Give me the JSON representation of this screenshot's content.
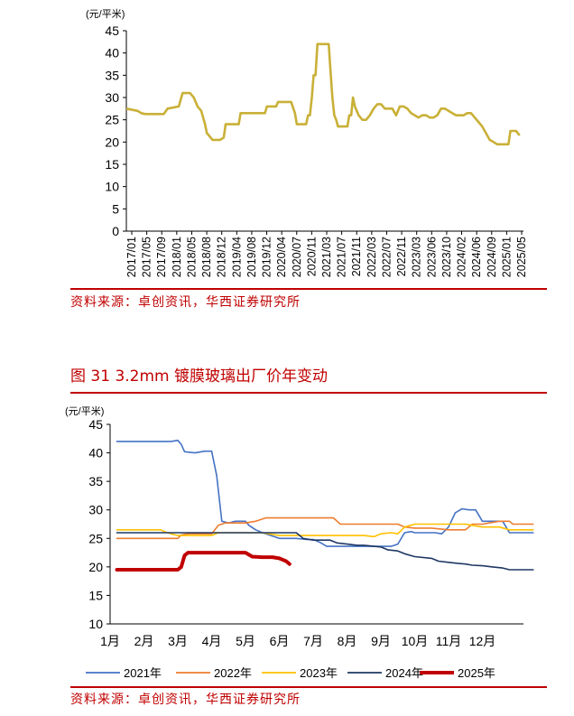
{
  "chart_data": [
    {
      "type": "line",
      "unit": "(元/平米)",
      "ylim": [
        0,
        45
      ],
      "yticks": [
        0,
        5,
        10,
        15,
        20,
        25,
        30,
        35,
        40,
        45
      ],
      "xticks": [
        "2017/01",
        "2017/05",
        "2017/09",
        "2018/01",
        "2018/05",
        "2018/08",
        "2018/12",
        "2019/04",
        "2019/08",
        "2019/12",
        "2020/04",
        "2020/07",
        "2020/11",
        "2021/03",
        "2021/07",
        "2021/11",
        "2022/03",
        "2022/07",
        "2022/11",
        "2023/03",
        "2023/06",
        "2023/10",
        "2024/02",
        "2024/06",
        "2024/09",
        "2025/01",
        "2025/05"
      ],
      "series": [
        {
          "color": "#c9b037",
          "points": [
            [
              0,
              27.5
            ],
            [
              3,
              27
            ],
            [
              4,
              26.5
            ],
            [
              5,
              26.3
            ],
            [
              10,
              26.3
            ],
            [
              11,
              27.5
            ],
            [
              14,
              28
            ],
            [
              15,
              31
            ],
            [
              17,
              31
            ],
            [
              18,
              30
            ],
            [
              19,
              28
            ],
            [
              20,
              27
            ],
            [
              21,
              24
            ],
            [
              21.5,
              22
            ],
            [
              22,
              21.5
            ],
            [
              23,
              20.5
            ],
            [
              25,
              20.5
            ],
            [
              26,
              21
            ],
            [
              26.5,
              24
            ],
            [
              30,
              24
            ],
            [
              30.5,
              26.5
            ],
            [
              37,
              26.5
            ],
            [
              37.5,
              28
            ],
            [
              40,
              28
            ],
            [
              40.5,
              29
            ],
            [
              44,
              29
            ],
            [
              45,
              26.5
            ],
            [
              45.5,
              24
            ],
            [
              48,
              24
            ],
            [
              48.5,
              26
            ],
            [
              49,
              26
            ],
            [
              49.5,
              30
            ],
            [
              50,
              35
            ],
            [
              50.5,
              35
            ],
            [
              51,
              42
            ],
            [
              54,
              42
            ],
            [
              54.5,
              36
            ],
            [
              55,
              30
            ],
            [
              55.5,
              26
            ],
            [
              56,
              25
            ],
            [
              56.5,
              23.5
            ],
            [
              59,
              23.5
            ],
            [
              59.5,
              26
            ],
            [
              60,
              26
            ],
            [
              60.5,
              30
            ],
            [
              61,
              28
            ],
            [
              62,
              26
            ],
            [
              63,
              25
            ],
            [
              64,
              25
            ],
            [
              65,
              26
            ],
            [
              66,
              27.5
            ],
            [
              67,
              28.5
            ],
            [
              68,
              28.5
            ],
            [
              69,
              27.5
            ],
            [
              71,
              27.5
            ],
            [
              72,
              26
            ],
            [
              73,
              28
            ],
            [
              74,
              28
            ],
            [
              75,
              27.5
            ],
            [
              76,
              26.5
            ],
            [
              77,
              26
            ],
            [
              78,
              25.5
            ],
            [
              79,
              26
            ],
            [
              80,
              26
            ],
            [
              81,
              25.5
            ],
            [
              82,
              25.5
            ],
            [
              83,
              26
            ],
            [
              84,
              27.5
            ],
            [
              85,
              27.5
            ],
            [
              86,
              27
            ],
            [
              87,
              26.5
            ],
            [
              88,
              26
            ],
            [
              90,
              26
            ],
            [
              91,
              26.5
            ],
            [
              92,
              26.5
            ],
            [
              93,
              25.5
            ],
            [
              94,
              24.5
            ],
            [
              95,
              23.5
            ],
            [
              96,
              22
            ],
            [
              97,
              20.5
            ],
            [
              98,
              20
            ],
            [
              99,
              19.5
            ],
            [
              102,
              19.5
            ],
            [
              102.5,
              22.5
            ],
            [
              104,
              22.5
            ],
            [
              105,
              21.5
            ]
          ]
        }
      ]
    },
    {
      "type": "line",
      "unit": "(元/平米)",
      "ylim": [
        10,
        45
      ],
      "yticks": [
        10,
        15,
        20,
        25,
        30,
        35,
        40,
        45
      ],
      "xticks": [
        "1月",
        "2月",
        "3月",
        "4月",
        "5月",
        "6月",
        "7月",
        "8月",
        "9月",
        "10月",
        "11月",
        "12月"
      ],
      "series": [
        {
          "name": "2021年",
          "color": "#4472c4",
          "width": 1.6,
          "points": [
            [
              0.2,
              42
            ],
            [
              1.8,
              42
            ],
            [
              2,
              42.2
            ],
            [
              2.1,
              41.5
            ],
            [
              2.2,
              40.2
            ],
            [
              2.5,
              40
            ],
            [
              2.8,
              40.3
            ],
            [
              3.0,
              40.3
            ],
            [
              3.15,
              36
            ],
            [
              3.3,
              28
            ],
            [
              3.5,
              27.7
            ],
            [
              3.7,
              28
            ],
            [
              4.0,
              28
            ],
            [
              4.1,
              27.3
            ],
            [
              4.3,
              26.5
            ],
            [
              4.5,
              26
            ],
            [
              5.0,
              25
            ],
            [
              5.5,
              25
            ],
            [
              5.8,
              24.8
            ],
            [
              6.0,
              24.8
            ],
            [
              6.2,
              24.3
            ],
            [
              6.4,
              23.6
            ],
            [
              6.6,
              23.6
            ],
            [
              8.0,
              23.6
            ],
            [
              8.3,
              23.6
            ],
            [
              8.5,
              24
            ],
            [
              8.7,
              26
            ],
            [
              8.9,
              26.2
            ],
            [
              9.0,
              26
            ],
            [
              9.6,
              26
            ],
            [
              9.8,
              25.8
            ],
            [
              10.0,
              27
            ],
            [
              10.2,
              29.5
            ],
            [
              10.4,
              30.2
            ],
            [
              10.6,
              30
            ],
            [
              10.8,
              30
            ],
            [
              11.0,
              28
            ],
            [
              11.2,
              28
            ],
            [
              11.6,
              28
            ],
            [
              11.8,
              26
            ],
            [
              12.1,
              26
            ],
            [
              12.5,
              26
            ]
          ]
        },
        {
          "name": "2022年",
          "color": "#ed7d31",
          "width": 1.6,
          "points": [
            [
              0.2,
              25
            ],
            [
              2.0,
              25
            ],
            [
              2.1,
              25.6
            ],
            [
              2.3,
              25.8
            ],
            [
              3.0,
              25.8
            ],
            [
              3.2,
              27.3
            ],
            [
              3.4,
              27.7
            ],
            [
              4.0,
              27.7
            ],
            [
              4.3,
              28
            ],
            [
              4.6,
              28.6
            ],
            [
              5.0,
              28.6
            ],
            [
              6.6,
              28.6
            ],
            [
              6.8,
              27.5
            ],
            [
              7.5,
              27.5
            ],
            [
              8.0,
              27.5
            ],
            [
              8.5,
              27.5
            ],
            [
              8.7,
              27
            ],
            [
              9.0,
              26.8
            ],
            [
              9.5,
              26.8
            ],
            [
              10.0,
              26.5
            ],
            [
              10.5,
              26.5
            ],
            [
              10.7,
              27.5
            ],
            [
              11.0,
              27.5
            ],
            [
              11.5,
              28
            ],
            [
              11.8,
              28
            ],
            [
              11.9,
              27.5
            ],
            [
              12.5,
              27.5
            ]
          ]
        },
        {
          "name": "2023年",
          "color": "#ffc000",
          "width": 1.6,
          "points": [
            [
              0.2,
              26.5
            ],
            [
              1.5,
              26.5
            ],
            [
              1.6,
              26.2
            ],
            [
              1.8,
              25.8
            ],
            [
              2.0,
              25.5
            ],
            [
              3.0,
              25.5
            ],
            [
              3.2,
              26
            ],
            [
              3.5,
              26
            ],
            [
              4.5,
              26
            ],
            [
              5.0,
              25.5
            ],
            [
              6.0,
              25.5
            ],
            [
              7.0,
              25.5
            ],
            [
              7.5,
              25.5
            ],
            [
              7.8,
              25.3
            ],
            [
              8.0,
              25.8
            ],
            [
              8.3,
              26
            ],
            [
              8.5,
              25.8
            ],
            [
              8.7,
              27
            ],
            [
              9.0,
              27.5
            ],
            [
              9.5,
              27.5
            ],
            [
              10.5,
              27.5
            ],
            [
              10.7,
              27.3
            ],
            [
              11.0,
              27
            ],
            [
              11.5,
              27
            ],
            [
              11.8,
              26.5
            ],
            [
              12.5,
              26.5
            ]
          ]
        },
        {
          "name": "2024年",
          "color": "#1f3864",
          "width": 1.6,
          "points": [
            [
              0.2,
              26
            ],
            [
              4.5,
              26
            ],
            [
              5.0,
              26
            ],
            [
              5.5,
              26
            ],
            [
              5.7,
              25
            ],
            [
              6.0,
              24.7
            ],
            [
              6.5,
              24.7
            ],
            [
              6.7,
              24.2
            ],
            [
              7.0,
              24
            ],
            [
              7.3,
              23.8
            ],
            [
              7.5,
              23.8
            ],
            [
              8.0,
              23.5
            ],
            [
              8.2,
              23
            ],
            [
              8.5,
              22.8
            ],
            [
              8.7,
              22.3
            ],
            [
              9.0,
              21.8
            ],
            [
              9.5,
              21.5
            ],
            [
              9.7,
              21
            ],
            [
              10.0,
              20.8
            ],
            [
              10.3,
              20.6
            ],
            [
              10.5,
              20.5
            ],
            [
              10.7,
              20.3
            ],
            [
              11.0,
              20.2
            ],
            [
              11.3,
              20
            ],
            [
              11.6,
              19.8
            ],
            [
              11.8,
              19.5
            ],
            [
              12.0,
              19.5
            ],
            [
              12.5,
              19.5
            ]
          ]
        },
        {
          "name": "2025年",
          "color": "#c00000",
          "width": 4,
          "points": [
            [
              0.2,
              19.5
            ],
            [
              2.0,
              19.5
            ],
            [
              2.1,
              20
            ],
            [
              2.2,
              22
            ],
            [
              2.3,
              22.5
            ],
            [
              4.0,
              22.5
            ],
            [
              4.2,
              21.8
            ],
            [
              4.5,
              21.7
            ],
            [
              4.8,
              21.7
            ],
            [
              5.0,
              21.5
            ],
            [
              5.2,
              21
            ],
            [
              5.3,
              20.5
            ]
          ]
        }
      ]
    }
  ],
  "figure_title": "图 31 3.2mm 镀膜玻璃出厂价年变动",
  "source_top": "资料来源：卓创资讯，华西证券研究所",
  "source_bottom": "资料来源：卓创资讯，华西证券研究所"
}
